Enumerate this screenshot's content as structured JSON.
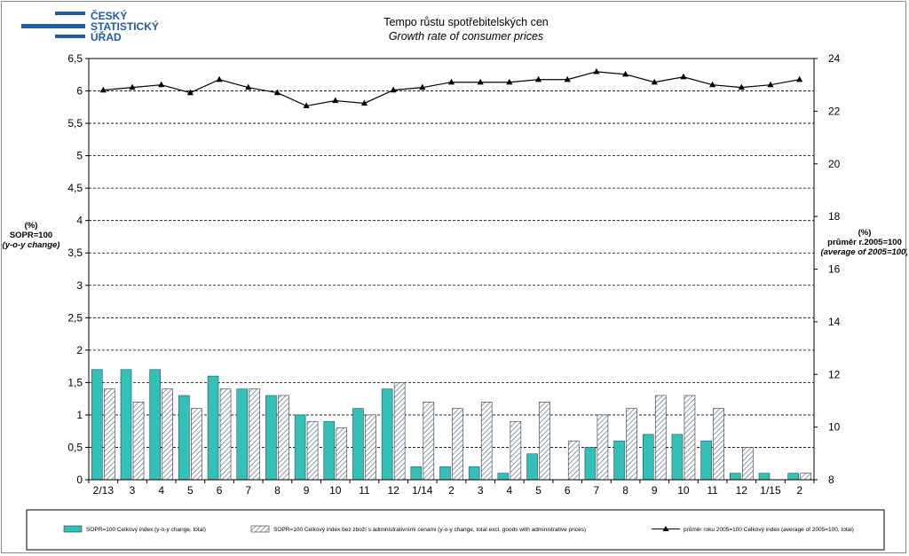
{
  "logo": {
    "lines": [
      "ČESKÝ",
      "STATISTICKÝ",
      "ÚŘAD"
    ],
    "color": "#1f5aa6"
  },
  "header": {
    "title_cz": "Tempo růstu spotřebitelských  cen",
    "title_en": "Growth rate  of consumer prices"
  },
  "left_axis_label": [
    "(%)",
    "SOPR=100",
    "(y-o-y change)"
  ],
  "right_axis_label": [
    "(%)",
    "průměr r.2005=100",
    "(average of 2005=100)"
  ],
  "chart_data": {
    "type": "bar",
    "categories": [
      "2/13",
      "3",
      "4",
      "5",
      "6",
      "7",
      "8",
      "9",
      "10",
      "11",
      "12",
      "1/14",
      "2",
      "3",
      "4",
      "5",
      "6",
      "7",
      "8",
      "9",
      "10",
      "11",
      "12",
      "1/15",
      "2"
    ],
    "left_ylim": [
      0,
      6.5
    ],
    "left_ticks": [
      "0",
      "0,5",
      "1",
      "1,5",
      "2",
      "2,5",
      "3",
      "3,5",
      "4",
      "4,5",
      "5",
      "5,5",
      "6",
      "6,5"
    ],
    "right_ylim": [
      8,
      24
    ],
    "right_ticks": [
      "8",
      "10",
      "12",
      "14",
      "16",
      "18",
      "20",
      "22",
      "24"
    ],
    "grid": true,
    "legend_position": "bottom",
    "series": [
      {
        "name": "SOPR=100 Celkový index (y-o-y change, total)",
        "kind": "bar",
        "axis": "left",
        "color": "#33c0b8",
        "values": [
          1.7,
          1.7,
          1.7,
          1.3,
          1.6,
          1.4,
          1.3,
          1.0,
          0.9,
          1.1,
          1.4,
          0.2,
          0.2,
          0.2,
          0.1,
          0.4,
          0.0,
          0.5,
          0.6,
          0.7,
          0.7,
          0.6,
          0.1,
          0.1,
          0.1
        ]
      },
      {
        "name": "SOPR=100 Celkový index bez zboží s administrativními cenami (y-o-y change, total excl. goods with administrative prices)",
        "kind": "bar-hatched",
        "axis": "left",
        "color": "#5a6f8c",
        "values": [
          1.4,
          1.2,
          1.4,
          1.1,
          1.4,
          1.4,
          1.3,
          0.9,
          0.8,
          1.0,
          1.5,
          1.2,
          1.1,
          1.2,
          0.9,
          1.2,
          0.6,
          1.0,
          1.1,
          1.3,
          1.3,
          1.1,
          0.5,
          0.0,
          0.1
        ]
      },
      {
        "name": "průměr roku 2005=100 Celkový index (average of 2005=100, total)",
        "kind": "line",
        "axis": "right",
        "color": "#000000",
        "values": [
          22.8,
          22.9,
          23.0,
          22.7,
          23.2,
          22.9,
          22.7,
          22.2,
          22.4,
          22.3,
          22.8,
          22.9,
          23.1,
          23.1,
          23.1,
          23.2,
          23.2,
          23.5,
          23.4,
          23.1,
          23.3,
          23.0,
          22.9,
          23.0,
          23.2
        ]
      }
    ]
  }
}
